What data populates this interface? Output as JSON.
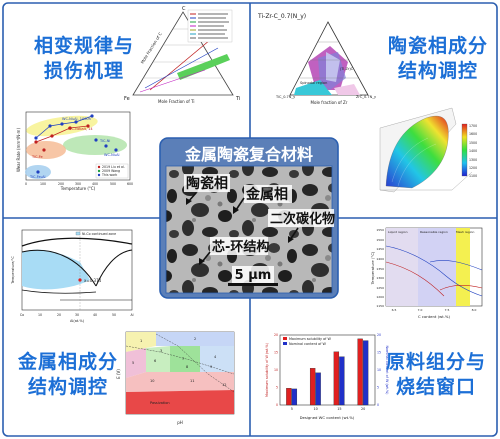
{
  "center": {
    "title": "金属陶瓷复合材料",
    "labels": {
      "ceramic": "陶瓷相",
      "metal": "金属相",
      "secondary_carbide": "二次碳化物",
      "core_rim": "芯-环结构"
    },
    "scale_bar": "5 μm"
  },
  "quadrants": {
    "top_left": {
      "line1": "相变规律与",
      "line2": "损伤机理"
    },
    "top_right": {
      "line1": "陶瓷相成分",
      "line2": "结构调控"
    },
    "bottom_left": {
      "line1": "金属相成分",
      "line2": "结构调控"
    },
    "bottom_right": {
      "line1": "原料组分与",
      "line2": "烧结窗口"
    }
  },
  "fe_ti_c_diagram": {
    "corner_top": "C",
    "corner_left": "Fe",
    "corner_right": "Ti",
    "left_axis": "Mole Fraction of C",
    "bottom_axis": "Mole Fraction of Ti"
  },
  "ternary_tizrc": {
    "title": "Ti-Zr-C_0.7(N_y)",
    "bottom_axis": "Mole fraction of Zr",
    "left_label": "TiC_0.7N_y",
    "right_label": "ZrC_0.7N_y",
    "region": "Spinodal region",
    "point": "(Ti,Zr)C"
  },
  "wear_chart": {
    "y_label": "Wear Rate (mm³/N·m)",
    "x_label": "Temperature (°C)",
    "x_ticks": [
      "0",
      "100",
      "200",
      "300",
      "400",
      "500",
      "600"
    ],
    "legend": [
      "2019 Liu et al.",
      "2009 Wang",
      "This work"
    ],
    "annotations": [
      "WC-Ni₃Al, 1000h",
      "WC-cobalt, 14",
      "TiC-Fe",
      "TiC-Ni",
      "WC-Ni₃Al",
      "TiC-Fe₃Al"
    ]
  },
  "wc_co_phase": {
    "legend": "Ni-Co continued zone",
    "annotation": "x=0.374",
    "x_label": "Al(at.%)",
    "y_label": "Temperature/°C",
    "x_ticks": [
      "Co",
      "10",
      "20",
      "30",
      "40",
      "50",
      "Al"
    ]
  },
  "colormap": {
    "ticks": [
      "1700",
      "1600",
      "1500",
      "1400",
      "1300",
      "1200",
      "1100"
    ]
  },
  "sintering_window": {
    "regions": [
      "Liquid region",
      "Reasonable region",
      "Mesh region"
    ],
    "y_label": "Temperature (°C)",
    "x_label": "C content (wt.%)",
    "y_ticks": [
      "1550",
      "1500",
      "1450",
      "1400",
      "1350",
      "1300",
      "1250",
      "1200",
      "1150"
    ],
    "x_ticks": [
      "6.5",
      "7.0",
      "7.5",
      "8.0"
    ]
  },
  "pourbaix": {
    "x_label": "pH",
    "y_label": "E (V)",
    "region_labels": [
      "1",
      "2",
      "3",
      "4",
      "5",
      "6",
      "7",
      "8",
      "9",
      "10",
      "11",
      "12",
      "Passivation"
    ]
  },
  "chart_data": {
    "type": "bar",
    "legend": [
      "Maximum solubility of W",
      "Nominal content of W"
    ],
    "xlabel": "Designed WC content (wt.%)",
    "ylabel": "Maximum solubility of W (wt.%)",
    "ylabel_right": "Nominal content of W (wt.%)",
    "categories": [
      "5",
      "10",
      "15",
      "20"
    ],
    "series": [
      {
        "name": "Maximum solubility of W",
        "values": [
          4.8,
          10.5,
          15.2,
          18.9
        ],
        "color": "#e02020"
      },
      {
        "name": "Nominal content of W",
        "values": [
          4.6,
          9.2,
          13.8,
          18.4
        ],
        "color": "#2030c8"
      }
    ],
    "ylim": [
      0,
      20
    ],
    "y_ticks": [
      "0",
      "5",
      "10",
      "15",
      "20"
    ]
  },
  "colors": {
    "title_blue": "#1c6fd6",
    "frame_blue": "#2b5fb0",
    "center_bg": "#5b7fb8"
  }
}
